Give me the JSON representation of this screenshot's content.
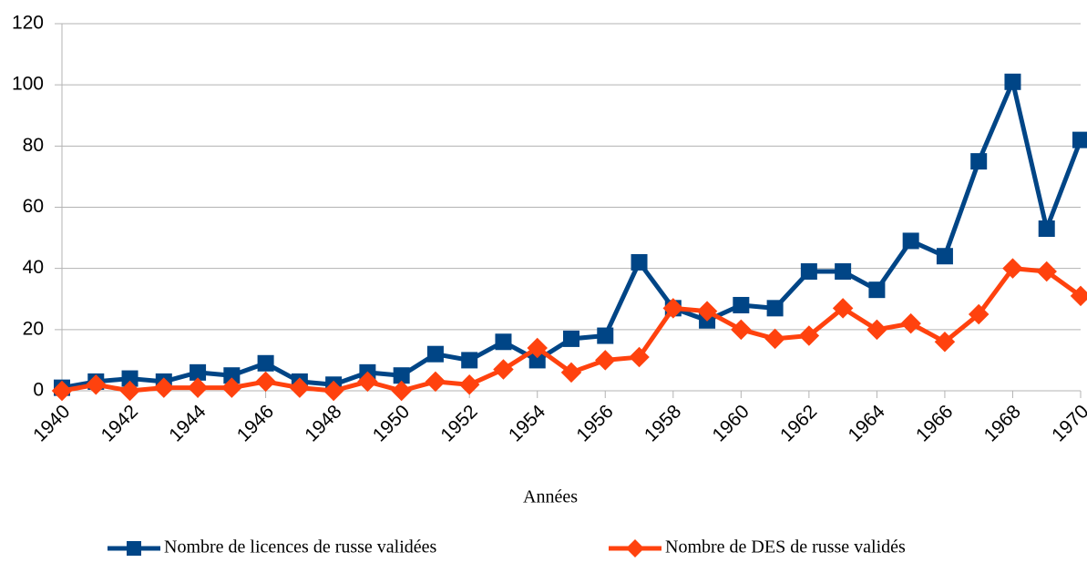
{
  "chart_data": {
    "type": "line",
    "x_label": "Années",
    "x": [
      1940,
      1941,
      1942,
      1943,
      1944,
      1945,
      1946,
      1947,
      1948,
      1949,
      1950,
      1951,
      1952,
      1953,
      1954,
      1955,
      1956,
      1957,
      1958,
      1959,
      1960,
      1961,
      1962,
      1963,
      1964,
      1965,
      1966,
      1967,
      1968,
      1969,
      1970
    ],
    "series": [
      {
        "name": "Nombre de licences de russe validées",
        "color": "#004586",
        "marker": "square",
        "values": [
          1,
          3,
          4,
          3,
          6,
          5,
          9,
          3,
          2,
          6,
          5,
          12,
          10,
          16,
          10,
          17,
          18,
          42,
          27,
          23,
          28,
          27,
          39,
          39,
          33,
          49,
          44,
          75,
          101,
          53,
          82
        ]
      },
      {
        "name": "Nombre de DES de russe validés",
        "color": "#ff420e",
        "marker": "diamond",
        "values": [
          0,
          2,
          0,
          1,
          1,
          1,
          3,
          1,
          0,
          3,
          0,
          3,
          2,
          7,
          14,
          6,
          10,
          11,
          27,
          26,
          20,
          17,
          18,
          27,
          20,
          22,
          16,
          25,
          40,
          39,
          31
        ]
      }
    ],
    "xlim": [
      1940,
      1970
    ],
    "xticks": [
      1940,
      1942,
      1944,
      1946,
      1948,
      1950,
      1952,
      1954,
      1956,
      1958,
      1960,
      1962,
      1964,
      1966,
      1968,
      1970
    ],
    "ylim": [
      0,
      120
    ],
    "yticks": [
      0,
      20,
      40,
      60,
      80,
      100,
      120
    ],
    "grid": true,
    "legend": "bottom"
  }
}
